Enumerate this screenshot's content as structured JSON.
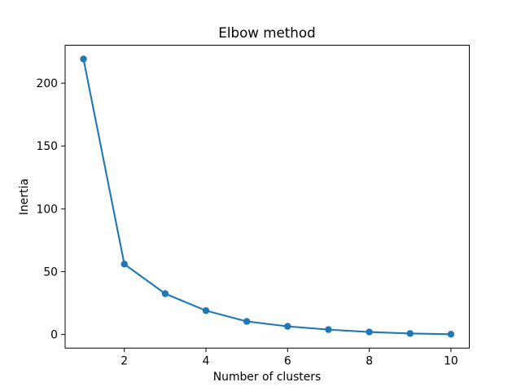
{
  "figure": {
    "background_color": "#ffffff",
    "axis_color": "#000000"
  },
  "chart_data": {
    "type": "line",
    "title": "Elbow method",
    "xlabel": "Number of clusters",
    "ylabel": "Inertia",
    "x": [
      1,
      2,
      3,
      4,
      5,
      6,
      7,
      8,
      9,
      10
    ],
    "y": [
      219.2,
      56.0,
      32.5,
      19.0,
      10.4,
      6.5,
      3.9,
      2.0,
      0.8,
      0.2
    ],
    "xticks": [
      2,
      4,
      6,
      8,
      10
    ],
    "yticks": [
      0,
      50,
      100,
      150,
      200
    ],
    "xlim": [
      0.55,
      10.45
    ],
    "ylim": [
      -10.8,
      230.2
    ],
    "line_color": "#1f77b4",
    "marker_color": "#1f77b4",
    "marker": "o",
    "grid": false,
    "legend_position": "none"
  }
}
